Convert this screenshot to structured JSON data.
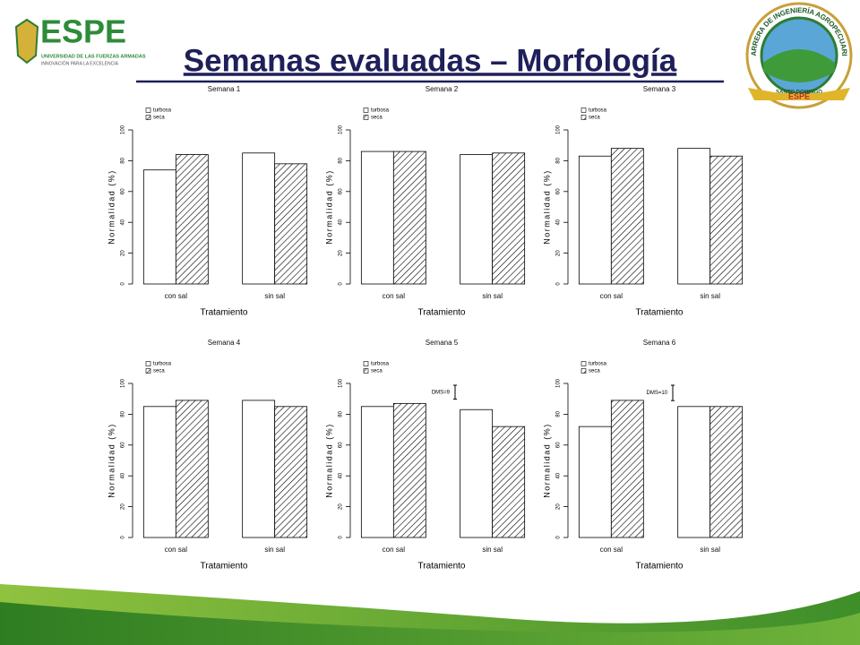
{
  "header": {
    "title": "Semanas evaluadas – Morfología",
    "logo_left": {
      "name": "ESPE",
      "line1": "UNIVERSIDAD DE LAS FUERZAS ARMADAS",
      "line2": "INNOVACIÓN PARA LA EXCELENCIA"
    },
    "logo_right": {
      "ring": "CARRERA DE INGENIERÍA AGROPECUARIA",
      "place": "SANTO DOMINGO",
      "name": "ESPE"
    }
  },
  "chart_data": [
    {
      "type": "bar",
      "title": "Semana 1",
      "categories": [
        "con sal",
        "sin sal"
      ],
      "series": [
        {
          "name": "turbosa",
          "color": "#ffffff",
          "values": [
            74,
            85
          ]
        },
        {
          "name": "seca",
          "color": "#000000",
          "hatch": true,
          "values": [
            84,
            78
          ]
        }
      ],
      "ylim": [
        0,
        100
      ],
      "yticks": [
        0,
        20,
        40,
        60,
        80,
        100
      ],
      "ylabel": "Normalidad (%)",
      "xlabel": "Tratamiento",
      "legend": "top-left"
    },
    {
      "type": "bar",
      "title": "Semana 2",
      "categories": [
        "con sal",
        "sin sal"
      ],
      "series": [
        {
          "name": "turbosa",
          "color": "#ffffff",
          "values": [
            86,
            84
          ]
        },
        {
          "name": "seca",
          "color": "#000000",
          "hatch": true,
          "values": [
            86,
            85
          ]
        }
      ],
      "ylim": [
        0,
        100
      ],
      "yticks": [
        0,
        20,
        40,
        60,
        80,
        100
      ],
      "ylabel": "Normalidad (%)",
      "xlabel": "Tratamiento",
      "legend": "top-left"
    },
    {
      "type": "bar",
      "title": "Semana 3",
      "categories": [
        "con sal",
        "sin sal"
      ],
      "series": [
        {
          "name": "turbosa",
          "color": "#ffffff",
          "values": [
            83,
            88
          ]
        },
        {
          "name": "seca",
          "color": "#000000",
          "hatch": true,
          "values": [
            88,
            83
          ]
        }
      ],
      "ylim": [
        0,
        100
      ],
      "yticks": [
        0,
        20,
        40,
        60,
        80,
        100
      ],
      "ylabel": "Normalidad (%)",
      "xlabel": "Tratamiento",
      "legend": "top-left"
    },
    {
      "type": "bar",
      "title": "Semana 4",
      "categories": [
        "con sal",
        "sin sal"
      ],
      "series": [
        {
          "name": "turbosa",
          "color": "#ffffff",
          "values": [
            85,
            89
          ]
        },
        {
          "name": "seca",
          "color": "#000000",
          "hatch": true,
          "values": [
            89,
            85
          ]
        }
      ],
      "ylim": [
        0,
        100
      ],
      "yticks": [
        0,
        20,
        40,
        60,
        80,
        100
      ],
      "ylabel": "Normalidad (%)",
      "xlabel": "Tratamiento",
      "legend": "top-left"
    },
    {
      "type": "bar",
      "title": "Semana 5",
      "categories": [
        "con sal",
        "sin sal"
      ],
      "series": [
        {
          "name": "turbosa",
          "color": "#ffffff",
          "values": [
            85,
            83
          ]
        },
        {
          "name": "seca",
          "color": "#000000",
          "hatch": true,
          "values": [
            87,
            72
          ]
        }
      ],
      "ylim": [
        0,
        100
      ],
      "yticks": [
        0,
        20,
        40,
        60,
        80,
        100
      ],
      "ylabel": "Normalidad (%)",
      "xlabel": "Tratamiento",
      "legend": "top-left",
      "dms": {
        "value": 9,
        "label": "DMS=9"
      }
    },
    {
      "type": "bar",
      "title": "Semana 6",
      "categories": [
        "con sal",
        "sin sal"
      ],
      "series": [
        {
          "name": "turbosa",
          "color": "#ffffff",
          "values": [
            72,
            85
          ]
        },
        {
          "name": "seca",
          "color": "#000000",
          "hatch": true,
          "values": [
            89,
            85
          ]
        }
      ],
      "ylim": [
        0,
        100
      ],
      "yticks": [
        0,
        20,
        40,
        60,
        80,
        100
      ],
      "ylabel": "Normalidad (%)",
      "xlabel": "Tratamiento",
      "legend": "top-left",
      "dms": {
        "value": 10,
        "label": "DMS=10"
      }
    }
  ]
}
